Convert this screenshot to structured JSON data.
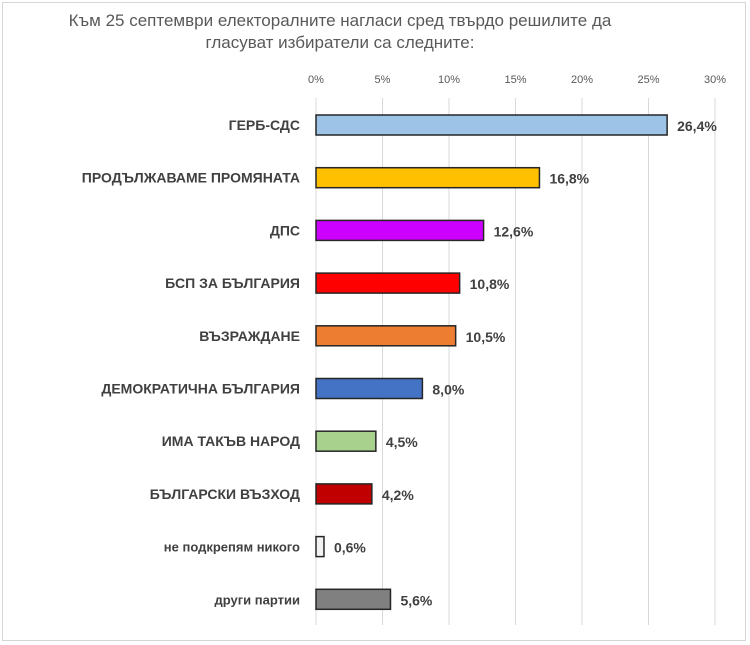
{
  "chart_data": {
    "type": "bar",
    "orientation": "horizontal",
    "title": "Към 25 септември електоралните нагласи сред твърдо решилите да гласуват избиратели са следните:",
    "categories": [
      "ГЕРБ-СДС",
      "ПРОДЪЛЖАВАМЕ ПРОМЯНАТА",
      "ДПС",
      "БСП ЗА БЪЛГАРИЯ",
      "ВЪЗРАЖДАНЕ",
      "ДЕМОКРАТИЧНА БЪЛГАРИЯ",
      "ИМА ТАКЪВ НАРОД",
      "БЪЛГАРСКИ ВЪЗХОД",
      "не подкрепям никого",
      "други партии"
    ],
    "values": [
      26.4,
      16.8,
      12.6,
      10.8,
      10.5,
      8.0,
      4.5,
      4.2,
      0.6,
      5.6
    ],
    "data_labels": [
      "26,4%",
      "16,8%",
      "12,6%",
      "10,8%",
      "10,5%",
      "8,0%",
      "4,5%",
      "4,2%",
      "0,6%",
      "5,6%"
    ],
    "colors": [
      "#9dc3e6",
      "#ffc000",
      "#cc00ff",
      "#ff0000",
      "#ed7d31",
      "#4472c4",
      "#a9d18e",
      "#c00000",
      "#f2f2f2",
      "#808080"
    ],
    "xlim": [
      0,
      30
    ],
    "xticks": [
      "0%",
      "5%",
      "10%",
      "15%",
      "20%",
      "25%",
      "30%"
    ],
    "xaxis_position": "top",
    "grid": true,
    "xlabel": "",
    "ylabel": ""
  }
}
